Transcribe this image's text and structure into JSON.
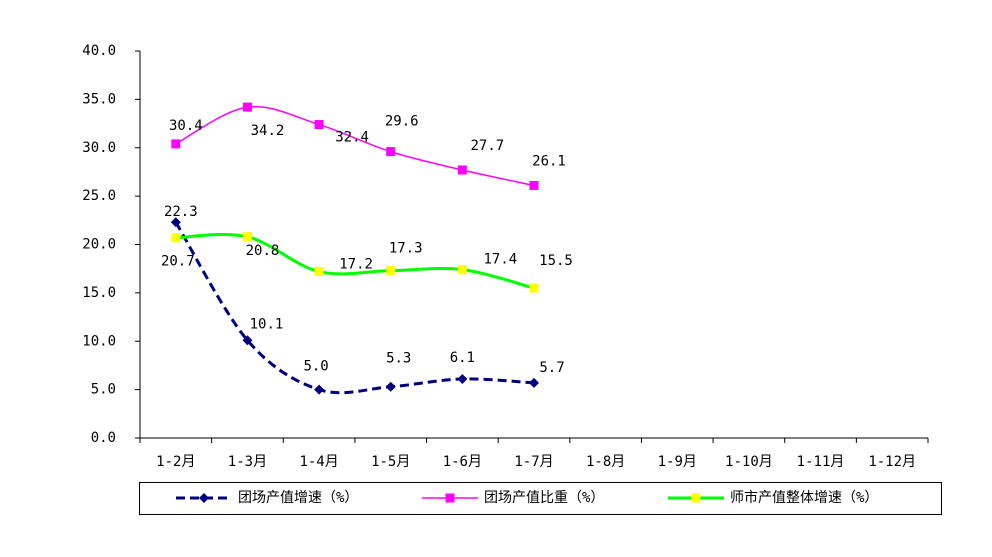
{
  "chart_data": {
    "type": "line",
    "categories": [
      "1-2月",
      "1-3月",
      "1-4月",
      "1-5月",
      "1-6月",
      "1-7月",
      "1-8月",
      "1-9月",
      "1-10月",
      "1-11月",
      "1-12月"
    ],
    "series": [
      {
        "name": "团场产值增速（%）",
        "color": "#000080",
        "dash": true,
        "marker": "diamond",
        "marker_color": "#000080",
        "values": [
          22.3,
          10.1,
          5.0,
          5.3,
          6.1,
          5.7,
          null,
          null,
          null,
          null,
          null
        ],
        "value_labels": [
          "22.3",
          "10.1",
          "5.0",
          "5.3",
          "6.1",
          "5.7",
          null,
          null,
          null,
          null,
          null
        ]
      },
      {
        "name": "团场产值比重（%）",
        "color": "#ff00ff",
        "dash": false,
        "marker": "square",
        "marker_color": "#ff00ff",
        "values": [
          30.4,
          34.2,
          32.4,
          29.6,
          27.7,
          26.1,
          null,
          null,
          null,
          null,
          null
        ],
        "value_labels": [
          "30.4",
          "34.2",
          "32.4",
          "29.6",
          "27.7",
          "26.1",
          null,
          null,
          null,
          null,
          null
        ]
      },
      {
        "name": "师市产值整体增速（%）",
        "color": "#00ff00",
        "dash": false,
        "marker": "square",
        "marker_color": "#ffff00",
        "values": [
          20.7,
          20.8,
          17.2,
          17.3,
          17.4,
          15.5,
          null,
          null,
          null,
          null,
          null
        ],
        "value_labels": [
          "20.7",
          "20.8",
          "17.2",
          "17.3",
          "17.4",
          "15.5",
          null,
          null,
          null,
          null,
          null
        ]
      }
    ],
    "ylim": [
      0,
      40
    ],
    "yticks": [
      {
        "value": 0,
        "label": "0.0"
      },
      {
        "value": 5,
        "label": "5.0"
      },
      {
        "value": 10,
        "label": "10.0"
      },
      {
        "value": 15,
        "label": "15.0"
      },
      {
        "value": 20,
        "label": "20.0"
      },
      {
        "value": 25,
        "label": "25.0"
      },
      {
        "value": 30,
        "label": "30.0"
      },
      {
        "value": 35,
        "label": "35.0"
      },
      {
        "value": 40,
        "label": "40.0"
      }
    ],
    "grid": false,
    "smooth": true,
    "legend": "bottom"
  }
}
